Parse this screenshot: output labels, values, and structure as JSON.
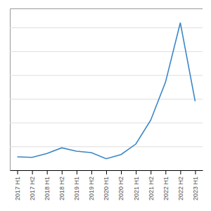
{
  "chart_data": {
    "type": "line",
    "categories": [
      "2017 H1",
      "2017 H2",
      "2018 H1",
      "2018 H2",
      "2019 H1",
      "2019 H2",
      "2020 H1",
      "2020 H2",
      "2021 H1",
      "2021 H2",
      "2022 H1",
      "2022 H2",
      "2023 H1"
    ],
    "values": [
      28,
      27,
      35,
      47,
      40,
      37,
      24,
      33,
      55,
      105,
      185,
      310,
      145
    ],
    "color": "#3a86c8",
    "ylim": [
      0,
      340
    ],
    "yticks": [
      0,
      50,
      100,
      150,
      200,
      250,
      300
    ],
    "grid": true,
    "tick_labels": "x"
  }
}
